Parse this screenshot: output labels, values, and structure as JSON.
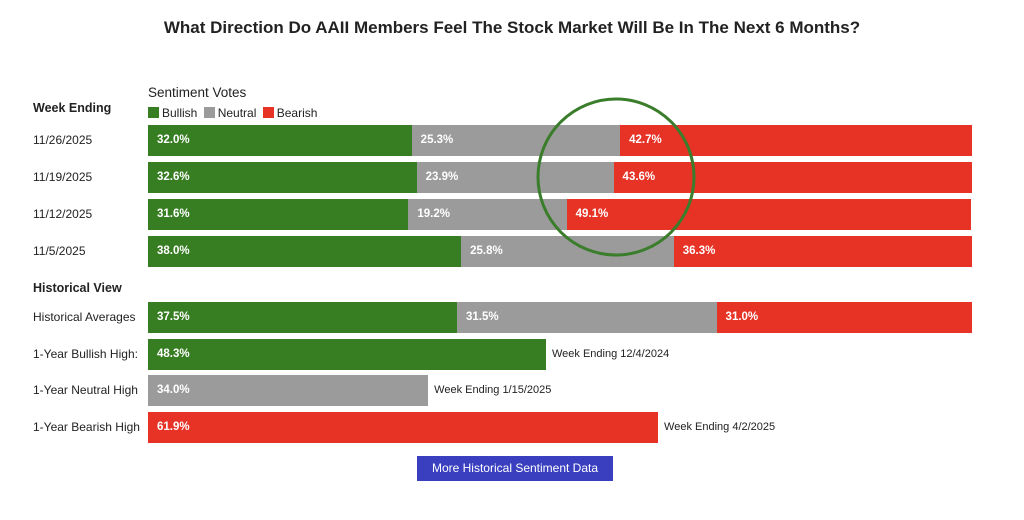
{
  "chart_data": {
    "type": "bar",
    "stacked": true,
    "orientation": "horizontal",
    "title": "What Direction Do AAII Members Feel The Stock Market Will Be In The Next 6 Months?",
    "legend_title": "Sentiment Votes",
    "legend": [
      "Bullish",
      "Neutral",
      "Bearish"
    ],
    "colors": {
      "Bullish": "#377d22",
      "Neutral": "#9b9b9b",
      "Bearish": "#e63326"
    },
    "xlim": [
      0,
      100
    ],
    "week_header": "Week Ending",
    "weeks": [
      {
        "label": "11/26/2025",
        "values": [
          32.0,
          25.3,
          42.7
        ],
        "texts": [
          "32.0%",
          "25.3%",
          "42.7%"
        ]
      },
      {
        "label": "11/19/2025",
        "values": [
          32.6,
          23.9,
          43.6
        ],
        "texts": [
          "32.6%",
          "23.9%",
          "43.6%"
        ]
      },
      {
        "label": "11/12/2025",
        "values": [
          31.6,
          19.2,
          49.1
        ],
        "texts": [
          "31.6%",
          "19.2%",
          "49.1%"
        ]
      },
      {
        "label": "11/5/2025",
        "values": [
          38.0,
          25.8,
          36.3
        ],
        "texts": [
          "38.0%",
          "25.8%",
          "36.3%"
        ]
      }
    ],
    "historical_header": "Historical View",
    "historical_averages": {
      "label": "Historical Averages",
      "values": [
        37.5,
        31.5,
        31.0
      ],
      "texts": [
        "37.5%",
        "31.5%",
        "31.0%"
      ]
    },
    "highs": [
      {
        "label": "1-Year Bullish High:",
        "series": "Bullish",
        "value": 48.3,
        "text": "48.3%",
        "note": "Week Ending 12/4/2024"
      },
      {
        "label": "1-Year Neutral High",
        "series": "Neutral",
        "value": 34.0,
        "text": "34.0%",
        "note": "Week Ending 1/15/2025"
      },
      {
        "label": "1-Year Bearish High",
        "series": "Bearish",
        "value": 61.9,
        "text": "61.9%",
        "note": "Week Ending 4/2/2025"
      }
    ],
    "annotation": {
      "type": "circle",
      "color": "#3a7d2a"
    }
  },
  "button": {
    "label": "More Historical Sentiment Data"
  }
}
